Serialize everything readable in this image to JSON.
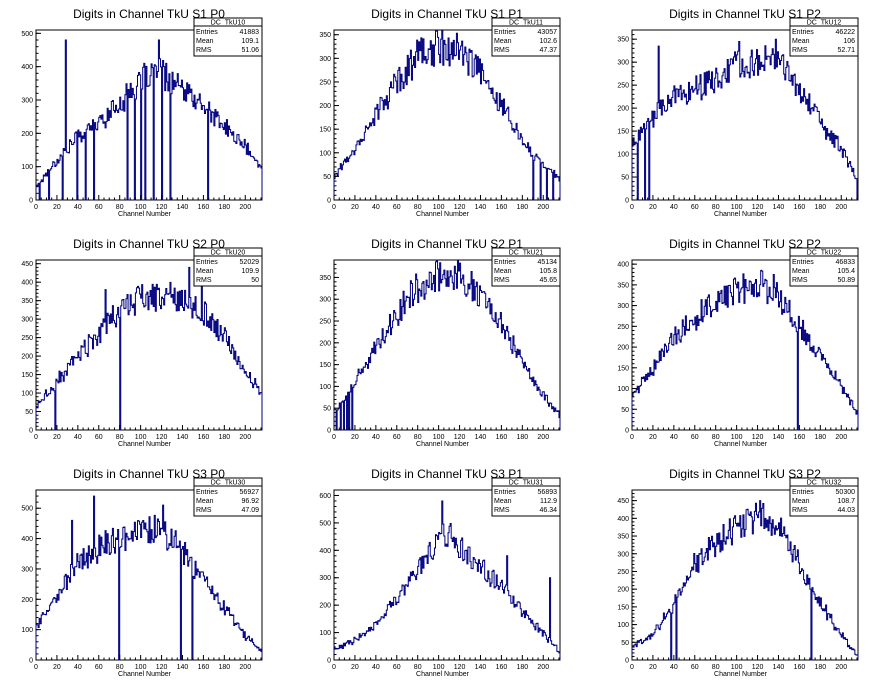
{
  "colors": {
    "line": "#00007f",
    "axis": "#000000",
    "background": "#ffffff"
  },
  "stat_labels": {
    "entries": "Entries",
    "mean": "Mean",
    "rms": "RMS"
  },
  "chart_data": [
    {
      "type": "line",
      "title": "Digits in Channel TkU S1 P0",
      "xlabel": "Channel Number",
      "ylabel": "",
      "xlim": [
        0,
        216
      ],
      "ylim": [
        0,
        510
      ],
      "xticks": [
        0,
        20,
        40,
        60,
        80,
        100,
        120,
        140,
        160,
        180,
        200
      ],
      "yticks": [
        0,
        100,
        200,
        300,
        400,
        500
      ],
      "stats": {
        "name": "DC_TkU10",
        "entries": "41883",
        "mean": "109.1",
        "rms": "51.06"
      },
      "profile": [
        [
          0,
          40
        ],
        [
          20,
          120
        ],
        [
          40,
          190
        ],
        [
          60,
          230
        ],
        [
          80,
          290
        ],
        [
          100,
          350
        ],
        [
          110,
          380
        ],
        [
          120,
          380
        ],
        [
          140,
          330
        ],
        [
          160,
          280
        ],
        [
          180,
          220
        ],
        [
          200,
          160
        ],
        [
          216,
          90
        ]
      ],
      "spikes": [
        [
          28,
          480
        ],
        [
          117,
          480
        ],
        [
          90,
          350
        ],
        [
          103,
          410
        ]
      ],
      "dips": [
        3,
        12,
        25,
        39,
        47,
        55,
        87,
        94,
        100,
        104,
        112,
        120,
        128,
        164
      ]
    },
    {
      "type": "line",
      "title": "Digits in Channel TkU S1 P1",
      "xlabel": "Channel Number",
      "ylabel": "",
      "xlim": [
        0,
        216
      ],
      "ylim": [
        0,
        360
      ],
      "xticks": [
        0,
        20,
        40,
        60,
        80,
        100,
        120,
        140,
        160,
        180,
        200
      ],
      "yticks": [
        0,
        50,
        100,
        150,
        200,
        250,
        300,
        350
      ],
      "stats": {
        "name": "DC_TkU11",
        "entries": "43057",
        "mean": "102.6",
        "rms": "47.37"
      },
      "profile": [
        [
          0,
          50
        ],
        [
          20,
          110
        ],
        [
          40,
          180
        ],
        [
          60,
          250
        ],
        [
          80,
          305
        ],
        [
          100,
          325
        ],
        [
          120,
          315
        ],
        [
          140,
          270
        ],
        [
          160,
          200
        ],
        [
          180,
          130
        ],
        [
          200,
          75
        ],
        [
          216,
          45
        ]
      ],
      "spikes": [],
      "dips": [
        190,
        197,
        203,
        209
      ]
    },
    {
      "type": "line",
      "title": "Digits in Channel TkU S1 P2",
      "xlabel": "Channel Number",
      "ylabel": "",
      "xlim": [
        0,
        216
      ],
      "ylim": [
        0,
        370
      ],
      "xticks": [
        0,
        20,
        40,
        60,
        80,
        100,
        120,
        140,
        160,
        180,
        200
      ],
      "yticks": [
        0,
        50,
        100,
        150,
        200,
        250,
        300,
        350
      ],
      "stats": {
        "name": "DC_TkU12",
        "entries": "46222",
        "mean": "106",
        "rms": "52.71"
      },
      "profile": [
        [
          0,
          120
        ],
        [
          20,
          180
        ],
        [
          40,
          230
        ],
        [
          60,
          240
        ],
        [
          80,
          260
        ],
        [
          100,
          290
        ],
        [
          120,
          310
        ],
        [
          140,
          300
        ],
        [
          160,
          240
        ],
        [
          180,
          170
        ],
        [
          200,
          110
        ],
        [
          216,
          40
        ]
      ],
      "spikes": [
        [
          25,
          335
        ],
        [
          102,
          345
        ],
        [
          137,
          350
        ]
      ],
      "dips": [
        5,
        12,
        16,
        215
      ]
    },
    {
      "type": "line",
      "title": "Digits in Channel TkU S2 P0",
      "xlabel": "Channel Number",
      "ylabel": "",
      "xlim": [
        0,
        216
      ],
      "ylim": [
        0,
        460
      ],
      "xticks": [
        0,
        20,
        40,
        60,
        80,
        100,
        120,
        140,
        160,
        180,
        200
      ],
      "yticks": [
        0,
        50,
        100,
        150,
        200,
        250,
        300,
        350,
        400,
        450
      ],
      "stats": {
        "name": "DC_TkU20",
        "entries": "52029",
        "mean": "109.9",
        "rms": "50"
      },
      "profile": [
        [
          0,
          60
        ],
        [
          20,
          130
        ],
        [
          40,
          200
        ],
        [
          60,
          260
        ],
        [
          70,
          290
        ],
        [
          80,
          330
        ],
        [
          100,
          355
        ],
        [
          120,
          360
        ],
        [
          140,
          360
        ],
        [
          160,
          320
        ],
        [
          180,
          250
        ],
        [
          200,
          160
        ],
        [
          216,
          100
        ]
      ],
      "spikes": [
        [
          146,
          440
        ],
        [
          158,
          445
        ],
        [
          66,
          380
        ]
      ],
      "dips": [
        18,
        80
      ]
    },
    {
      "type": "line",
      "title": "Digits in Channel TkU S2 P1",
      "xlabel": "Channel Number",
      "ylabel": "",
      "xlim": [
        0,
        216
      ],
      "ylim": [
        0,
        390
      ],
      "xticks": [
        0,
        20,
        40,
        60,
        80,
        100,
        120,
        140,
        160,
        180,
        200
      ],
      "yticks": [
        0,
        50,
        100,
        150,
        200,
        250,
        300,
        350
      ],
      "stats": {
        "name": "DC_TkU21",
        "entries": "45134",
        "mean": "105.8",
        "rms": "45.65"
      },
      "profile": [
        [
          0,
          40
        ],
        [
          20,
          110
        ],
        [
          40,
          190
        ],
        [
          60,
          265
        ],
        [
          80,
          330
        ],
        [
          100,
          360
        ],
        [
          120,
          355
        ],
        [
          140,
          310
        ],
        [
          160,
          240
        ],
        [
          180,
          160
        ],
        [
          200,
          80
        ],
        [
          216,
          35
        ]
      ],
      "spikes": [],
      "dips": [
        2,
        6,
        9,
        12,
        14,
        17
      ]
    },
    {
      "type": "line",
      "title": "Digits in Channel TkU S2 P2",
      "xlabel": "Channel Number",
      "ylabel": "",
      "xlim": [
        0,
        216
      ],
      "ylim": [
        0,
        410
      ],
      "xticks": [
        0,
        20,
        40,
        60,
        80,
        100,
        120,
        140,
        160,
        180,
        200
      ],
      "yticks": [
        0,
        50,
        100,
        150,
        200,
        250,
        300,
        350,
        400
      ],
      "stats": {
        "name": "DC_TkU22",
        "entries": "46833",
        "mean": "105.4",
        "rms": "50.89"
      },
      "profile": [
        [
          0,
          80
        ],
        [
          20,
          150
        ],
        [
          40,
          220
        ],
        [
          60,
          270
        ],
        [
          80,
          305
        ],
        [
          100,
          335
        ],
        [
          120,
          350
        ],
        [
          140,
          320
        ],
        [
          160,
          250
        ],
        [
          180,
          180
        ],
        [
          200,
          110
        ],
        [
          216,
          40
        ]
      ],
      "spikes": [
        [
          123,
          385
        ],
        [
          135,
          375
        ]
      ],
      "dips": [
        158
      ]
    },
    {
      "type": "line",
      "title": "Digits in Channel TkU S3 P0",
      "xlabel": "Channel Number",
      "ylabel": "",
      "xlim": [
        0,
        216
      ],
      "ylim": [
        0,
        560
      ],
      "xticks": [
        0,
        20,
        40,
        60,
        80,
        100,
        120,
        140,
        160,
        180,
        200
      ],
      "yticks": [
        0,
        100,
        200,
        300,
        400,
        500
      ],
      "stats": {
        "name": "DC_TkU30",
        "entries": "56927",
        "mean": "96.92",
        "rms": "47.09"
      },
      "profile": [
        [
          0,
          110
        ],
        [
          20,
          210
        ],
        [
          40,
          320
        ],
        [
          60,
          370
        ],
        [
          80,
          400
        ],
        [
          100,
          430
        ],
        [
          120,
          420
        ],
        [
          140,
          360
        ],
        [
          160,
          270
        ],
        [
          180,
          170
        ],
        [
          200,
          80
        ],
        [
          216,
          30
        ]
      ],
      "spikes": [
        [
          55,
          540
        ],
        [
          121,
          510
        ],
        [
          34,
          460
        ]
      ],
      "dips": [
        79,
        138,
        149
      ]
    },
    {
      "type": "line",
      "title": "Digits in Channel TkU S3 P1",
      "xlabel": "Channel Number",
      "ylabel": "",
      "xlim": [
        0,
        216
      ],
      "ylim": [
        0,
        620
      ],
      "xticks": [
        0,
        20,
        40,
        60,
        80,
        100,
        120,
        140,
        160,
        180,
        200
      ],
      "yticks": [
        0,
        100,
        200,
        300,
        400,
        500,
        600
      ],
      "stats": {
        "name": "DC_TkU31",
        "entries": "56893",
        "mean": "112.9",
        "rms": "46.34"
      },
      "profile": [
        [
          0,
          40
        ],
        [
          20,
          70
        ],
        [
          40,
          130
        ],
        [
          60,
          220
        ],
        [
          80,
          320
        ],
        [
          100,
          430
        ],
        [
          110,
          470
        ],
        [
          120,
          420
        ],
        [
          140,
          340
        ],
        [
          160,
          270
        ],
        [
          180,
          180
        ],
        [
          200,
          100
        ],
        [
          216,
          30
        ]
      ],
      "spikes": [
        [
          103,
          580
        ],
        [
          165,
          380
        ],
        [
          206,
          300
        ]
      ],
      "dips": []
    },
    {
      "type": "line",
      "title": "Digits in Channel TkU S3 P2",
      "xlabel": "Channel Number",
      "ylabel": "",
      "xlim": [
        0,
        216
      ],
      "ylim": [
        0,
        480
      ],
      "xticks": [
        0,
        20,
        40,
        60,
        80,
        100,
        120,
        140,
        160,
        180,
        200
      ],
      "yticks": [
        0,
        50,
        100,
        150,
        200,
        250,
        300,
        350,
        400,
        450
      ],
      "stats": {
        "name": "DC_TkU32",
        "entries": "50300",
        "mean": "108.7",
        "rms": "44.03"
      },
      "profile": [
        [
          0,
          40
        ],
        [
          20,
          70
        ],
        [
          40,
          160
        ],
        [
          60,
          270
        ],
        [
          80,
          330
        ],
        [
          100,
          380
        ],
        [
          120,
          410
        ],
        [
          140,
          370
        ],
        [
          160,
          270
        ],
        [
          180,
          160
        ],
        [
          200,
          70
        ],
        [
          216,
          10
        ]
      ],
      "spikes": [
        [
          122,
          450
        ]
      ],
      "dips": [
        37,
        42,
        171
      ]
    }
  ]
}
